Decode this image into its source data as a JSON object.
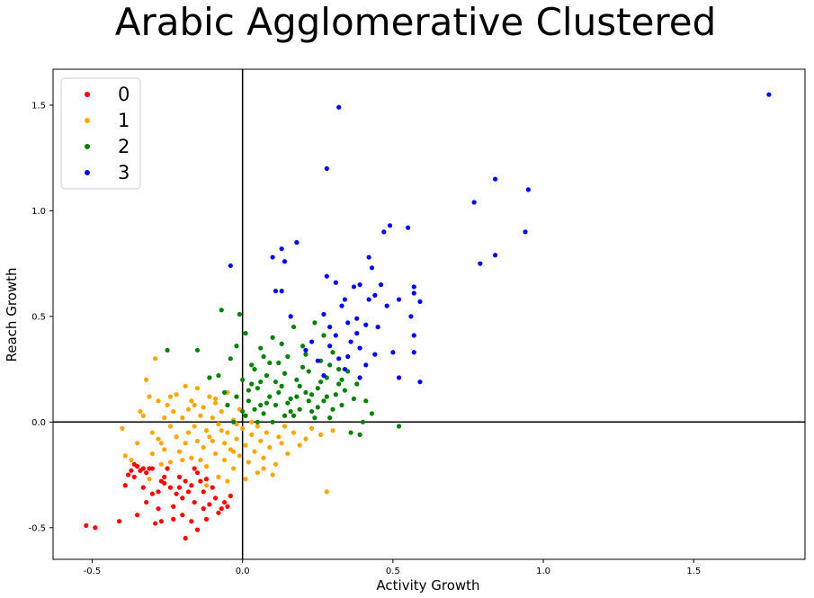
{
  "chart_data": {
    "type": "scatter",
    "title": "Arabic Agglomerative Clustered",
    "xlabel": "Activity Growth",
    "ylabel": "Reach Growth",
    "xlim": [
      -0.63,
      1.87
    ],
    "ylim": [
      -0.65,
      1.67
    ],
    "xticks": [
      -0.5,
      0.0,
      0.5,
      1.0,
      1.5
    ],
    "xtick_labels": [
      "-0.5",
      "0.0",
      "0.5",
      "1.0",
      "1.5"
    ],
    "yticks": [
      -0.5,
      0.0,
      0.5,
      1.0,
      1.5
    ],
    "ytick_labels": [
      "-0.5",
      "0.0",
      "0.5",
      "1.0",
      "1.5"
    ],
    "reference_lines": {
      "x": 0.0,
      "y": 0.0
    },
    "legend_position": "top-left",
    "series": [
      {
        "name": "0",
        "color": "#ff0000",
        "points": [
          [
            -0.52,
            -0.49
          ],
          [
            -0.49,
            -0.5
          ],
          [
            -0.41,
            -0.47
          ],
          [
            -0.39,
            -0.3
          ],
          [
            -0.38,
            -0.25
          ],
          [
            -0.37,
            -0.23
          ],
          [
            -0.36,
            -0.26
          ],
          [
            -0.35,
            -0.21
          ],
          [
            -0.34,
            -0.23
          ],
          [
            -0.33,
            -0.22
          ],
          [
            -0.32,
            -0.24
          ],
          [
            -0.31,
            -0.22
          ],
          [
            -0.35,
            -0.44
          ],
          [
            -0.33,
            -0.31
          ],
          [
            -0.32,
            -0.38
          ],
          [
            -0.3,
            -0.34
          ],
          [
            -0.28,
            -0.33
          ],
          [
            -0.27,
            -0.28
          ],
          [
            -0.28,
            -0.41
          ],
          [
            -0.27,
            -0.47
          ],
          [
            -0.25,
            -0.22
          ],
          [
            -0.26,
            -0.26
          ],
          [
            -0.24,
            -0.31
          ],
          [
            -0.23,
            -0.46
          ],
          [
            -0.22,
            -0.34
          ],
          [
            -0.21,
            -0.31
          ],
          [
            -0.2,
            -0.36
          ],
          [
            -0.21,
            -0.26
          ],
          [
            -0.19,
            -0.28
          ],
          [
            -0.2,
            -0.44
          ],
          [
            -0.19,
            -0.55
          ],
          [
            -0.18,
            -0.33
          ],
          [
            -0.17,
            -0.3
          ],
          [
            -0.16,
            -0.22
          ],
          [
            -0.15,
            -0.24
          ],
          [
            -0.16,
            -0.38
          ],
          [
            -0.17,
            -0.47
          ],
          [
            -0.15,
            -0.51
          ],
          [
            -0.14,
            -0.28
          ],
          [
            -0.13,
            -0.33
          ],
          [
            -0.12,
            -0.27
          ],
          [
            -0.12,
            -0.46
          ],
          [
            -0.11,
            -0.39
          ],
          [
            -0.1,
            -0.31
          ],
          [
            -0.09,
            -0.36
          ],
          [
            -0.08,
            -0.43
          ],
          [
            -0.07,
            -0.41
          ],
          [
            -0.06,
            -0.38
          ],
          [
            -0.05,
            -0.4
          ],
          [
            -0.04,
            -0.35
          ],
          [
            -0.23,
            -0.4
          ],
          [
            -0.29,
            -0.48
          ],
          [
            -0.36,
            -0.2
          ],
          [
            -0.3,
            -0.22
          ],
          [
            -0.26,
            -0.29
          ],
          [
            -0.13,
            -0.41
          ]
        ]
      },
      {
        "name": "1",
        "color": "#ffa500",
        "points": [
          [
            -0.4,
            -0.03
          ],
          [
            -0.39,
            -0.16
          ],
          [
            -0.37,
            -0.18
          ],
          [
            -0.35,
            -0.1
          ],
          [
            -0.34,
            0.05
          ],
          [
            -0.32,
            0.2
          ],
          [
            -0.31,
            0.12
          ],
          [
            -0.3,
            -0.05
          ],
          [
            -0.3,
            -0.15
          ],
          [
            -0.31,
            -0.27
          ],
          [
            -0.29,
            0.3
          ],
          [
            -0.28,
            0.1
          ],
          [
            -0.28,
            -0.08
          ],
          [
            -0.27,
            -0.2
          ],
          [
            -0.26,
            0.02
          ],
          [
            -0.26,
            -0.13
          ],
          [
            -0.25,
            0.08
          ],
          [
            -0.24,
            -0.02
          ],
          [
            -0.24,
            -0.19
          ],
          [
            -0.23,
            0.05
          ],
          [
            -0.22,
            0.13
          ],
          [
            -0.22,
            -0.07
          ],
          [
            -0.21,
            -0.14
          ],
          [
            -0.2,
            0.02
          ],
          [
            -0.19,
            -0.1
          ],
          [
            -0.18,
            0.06
          ],
          [
            -0.18,
            -0.05
          ],
          [
            -0.17,
            -0.17
          ],
          [
            -0.17,
            0.1
          ],
          [
            -0.16,
            -0.02
          ],
          [
            -0.15,
            0.16
          ],
          [
            -0.15,
            -0.09
          ],
          [
            -0.14,
            0.03
          ],
          [
            -0.13,
            -0.12
          ],
          [
            -0.13,
            0.07
          ],
          [
            -0.12,
            -0.04
          ],
          [
            -0.12,
            -0.21
          ],
          [
            -0.11,
            0.12
          ],
          [
            -0.11,
            -0.07
          ],
          [
            -0.1,
            0.02
          ],
          [
            -0.09,
            -0.15
          ],
          [
            -0.09,
            0.09
          ],
          [
            -0.08,
            -0.01
          ],
          [
            -0.08,
            -0.26
          ],
          [
            -0.07,
            0.05
          ],
          [
            -0.06,
            -0.1
          ],
          [
            -0.06,
            -0.18
          ],
          [
            -0.05,
            0.14
          ],
          [
            -0.05,
            -0.05
          ],
          [
            -0.04,
            -0.13
          ],
          [
            -0.03,
            0.01
          ],
          [
            -0.03,
            -0.22
          ],
          [
            -0.02,
            -0.08
          ],
          [
            -0.01,
            0.06
          ],
          [
            -0.01,
            -0.16
          ],
          [
            0.0,
            -0.03
          ],
          [
            0.01,
            -0.11
          ],
          [
            0.02,
            -0.19
          ],
          [
            0.03,
            -0.06
          ],
          [
            0.04,
            -0.14
          ],
          [
            0.05,
            -0.02
          ],
          [
            0.06,
            -0.09
          ],
          [
            0.07,
            -0.17
          ],
          [
            0.08,
            -0.05
          ],
          [
            0.09,
            -0.12
          ],
          [
            0.11,
            -0.2
          ],
          [
            0.12,
            -0.07
          ],
          [
            0.13,
            -0.1
          ],
          [
            0.15,
            -0.15
          ],
          [
            0.17,
            -0.05
          ],
          [
            0.19,
            -0.11
          ],
          [
            0.21,
            -0.08
          ],
          [
            0.23,
            -0.03
          ],
          [
            0.26,
            -0.06
          ],
          [
            0.28,
            -0.33
          ],
          [
            0.3,
            -0.04
          ],
          [
            0.01,
            -0.27
          ],
          [
            -0.05,
            -0.28
          ],
          [
            -0.12,
            -0.3
          ],
          [
            0.05,
            -0.24
          ],
          [
            0.1,
            -0.25
          ],
          [
            -0.2,
            -0.18
          ],
          [
            -0.14,
            -0.18
          ],
          [
            -0.07,
            -0.04
          ],
          [
            -0.02,
            -0.01
          ],
          [
            0.03,
            0.0
          ],
          [
            -0.16,
            0.08
          ],
          [
            -0.09,
            0.11
          ],
          [
            -0.24,
            0.12
          ],
          [
            -0.19,
            0.17
          ],
          [
            -0.33,
            0.03
          ],
          [
            -0.27,
            -0.1
          ],
          [
            0.14,
            -0.02
          ],
          [
            0.07,
            -0.22
          ],
          [
            -0.03,
            -0.14
          ],
          [
            -0.1,
            -0.09
          ]
        ]
      },
      {
        "name": "2",
        "color": "#008000",
        "points": [
          [
            -0.25,
            0.34
          ],
          [
            -0.15,
            0.34
          ],
          [
            -0.11,
            0.21
          ],
          [
            -0.07,
            0.53
          ],
          [
            -0.04,
            0.3
          ],
          [
            -0.02,
            0.12
          ],
          [
            -0.01,
            0.51
          ],
          [
            0.0,
            0.2
          ],
          [
            0.01,
            0.03
          ],
          [
            0.02,
            0.1
          ],
          [
            0.03,
            0.27
          ],
          [
            0.04,
            0.06
          ],
          [
            0.05,
            0.16
          ],
          [
            0.06,
            0.35
          ],
          [
            0.07,
            0.04
          ],
          [
            0.08,
            0.22
          ],
          [
            0.09,
            0.12
          ],
          [
            0.1,
            0.4
          ],
          [
            0.11,
            0.08
          ],
          [
            0.12,
            0.28
          ],
          [
            0.13,
            0.17
          ],
          [
            0.14,
            0.03
          ],
          [
            0.15,
            0.31
          ],
          [
            0.16,
            0.11
          ],
          [
            0.17,
            0.45
          ],
          [
            0.18,
            0.2
          ],
          [
            0.19,
            0.06
          ],
          [
            0.2,
            0.36
          ],
          [
            0.21,
            0.14
          ],
          [
            0.22,
            0.24
          ],
          [
            0.23,
            0.05
          ],
          [
            0.24,
            0.47
          ],
          [
            0.25,
            0.16
          ],
          [
            0.26,
            0.29
          ],
          [
            0.27,
            0.1
          ],
          [
            0.28,
            0.21
          ],
          [
            0.29,
            0.02
          ],
          [
            0.3,
            0.33
          ],
          [
            0.31,
            0.13
          ],
          [
            0.32,
            0.18
          ],
          [
            0.33,
            0.08
          ],
          [
            0.35,
            0.24
          ],
          [
            0.36,
            -0.05
          ],
          [
            0.37,
            0.11
          ],
          [
            0.39,
            -0.06
          ],
          [
            0.41,
            0.1
          ],
          [
            0.43,
            0.04
          ],
          [
            0.52,
            -0.02
          ],
          [
            -0.08,
            0.22
          ],
          [
            -0.05,
            0.08
          ],
          [
            -0.03,
            0.0
          ],
          [
            0.0,
            0.05
          ],
          [
            0.02,
            0.15
          ],
          [
            0.04,
            0.25
          ],
          [
            0.06,
            0.19
          ],
          [
            0.08,
            0.09
          ],
          [
            0.1,
            0.0
          ],
          [
            0.12,
            0.14
          ],
          [
            0.14,
            0.23
          ],
          [
            0.16,
            0.05
          ],
          [
            0.18,
            0.12
          ],
          [
            0.2,
            0.26
          ],
          [
            0.22,
            0.1
          ],
          [
            0.24,
            0.02
          ],
          [
            0.26,
            0.19
          ],
          [
            0.28,
            0.12
          ],
          [
            0.3,
            0.06
          ],
          [
            0.32,
            0.25
          ],
          [
            0.34,
            0.15
          ],
          [
            0.38,
            0.18
          ],
          [
            0.06,
            0.08
          ],
          [
            0.03,
            0.18
          ],
          [
            0.09,
            0.28
          ],
          [
            0.13,
            0.37
          ],
          [
            0.15,
            0.09
          ],
          [
            0.17,
            0.03
          ],
          [
            0.19,
            0.17
          ],
          [
            0.21,
            0.32
          ],
          [
            0.23,
            0.13
          ],
          [
            0.25,
            0.07
          ],
          [
            -0.06,
            0.14
          ],
          [
            -0.02,
            0.36
          ],
          [
            0.01,
            0.42
          ],
          [
            0.07,
            0.31
          ],
          [
            0.11,
            0.19
          ],
          [
            0.27,
            0.41
          ],
          [
            0.29,
            0.27
          ],
          [
            0.05,
            0.0
          ],
          [
            0.33,
            0.2
          ],
          [
            0.4,
            0.0
          ]
        ]
      },
      {
        "name": "3",
        "color": "#0000ff",
        "points": [
          [
            1.75,
            1.55
          ],
          [
            0.32,
            1.49
          ],
          [
            0.28,
            1.2
          ],
          [
            0.84,
            1.15
          ],
          [
            0.95,
            1.1
          ],
          [
            0.77,
            1.04
          ],
          [
            0.49,
            0.93
          ],
          [
            0.55,
            0.92
          ],
          [
            0.47,
            0.9
          ],
          [
            0.94,
            0.9
          ],
          [
            0.84,
            0.79
          ],
          [
            0.79,
            0.75
          ],
          [
            0.18,
            0.85
          ],
          [
            0.13,
            0.82
          ],
          [
            0.1,
            0.78
          ],
          [
            0.14,
            0.76
          ],
          [
            -0.04,
            0.74
          ],
          [
            0.42,
            0.78
          ],
          [
            0.43,
            0.73
          ],
          [
            0.28,
            0.69
          ],
          [
            0.37,
            0.64
          ],
          [
            0.39,
            0.65
          ],
          [
            0.46,
            0.65
          ],
          [
            0.57,
            0.64
          ],
          [
            0.11,
            0.62
          ],
          [
            0.13,
            0.62
          ],
          [
            0.31,
            0.66
          ],
          [
            0.34,
            0.58
          ],
          [
            0.42,
            0.58
          ],
          [
            0.44,
            0.6
          ],
          [
            0.48,
            0.55
          ],
          [
            0.52,
            0.58
          ],
          [
            0.57,
            0.61
          ],
          [
            0.59,
            0.57
          ],
          [
            0.16,
            0.5
          ],
          [
            0.27,
            0.51
          ],
          [
            0.29,
            0.45
          ],
          [
            0.33,
            0.55
          ],
          [
            0.35,
            0.47
          ],
          [
            0.38,
            0.49
          ],
          [
            0.41,
            0.46
          ],
          [
            0.45,
            0.45
          ],
          [
            0.56,
            0.5
          ],
          [
            0.57,
            0.41
          ],
          [
            0.57,
            0.33
          ],
          [
            0.5,
            0.33
          ],
          [
            0.52,
            0.21
          ],
          [
            0.59,
            0.19
          ],
          [
            0.36,
            0.38
          ],
          [
            0.39,
            0.35
          ],
          [
            0.32,
            0.3
          ],
          [
            0.29,
            0.36
          ],
          [
            0.25,
            0.29
          ],
          [
            0.23,
            0.38
          ],
          [
            0.34,
            0.25
          ],
          [
            0.41,
            0.27
          ],
          [
            0.44,
            0.32
          ],
          [
            0.38,
            0.42
          ],
          [
            0.21,
            0.34
          ],
          [
            0.31,
            0.41
          ],
          [
            0.35,
            0.31
          ],
          [
            0.27,
            0.22
          ],
          [
            0.39,
            0.21
          ]
        ]
      }
    ]
  }
}
